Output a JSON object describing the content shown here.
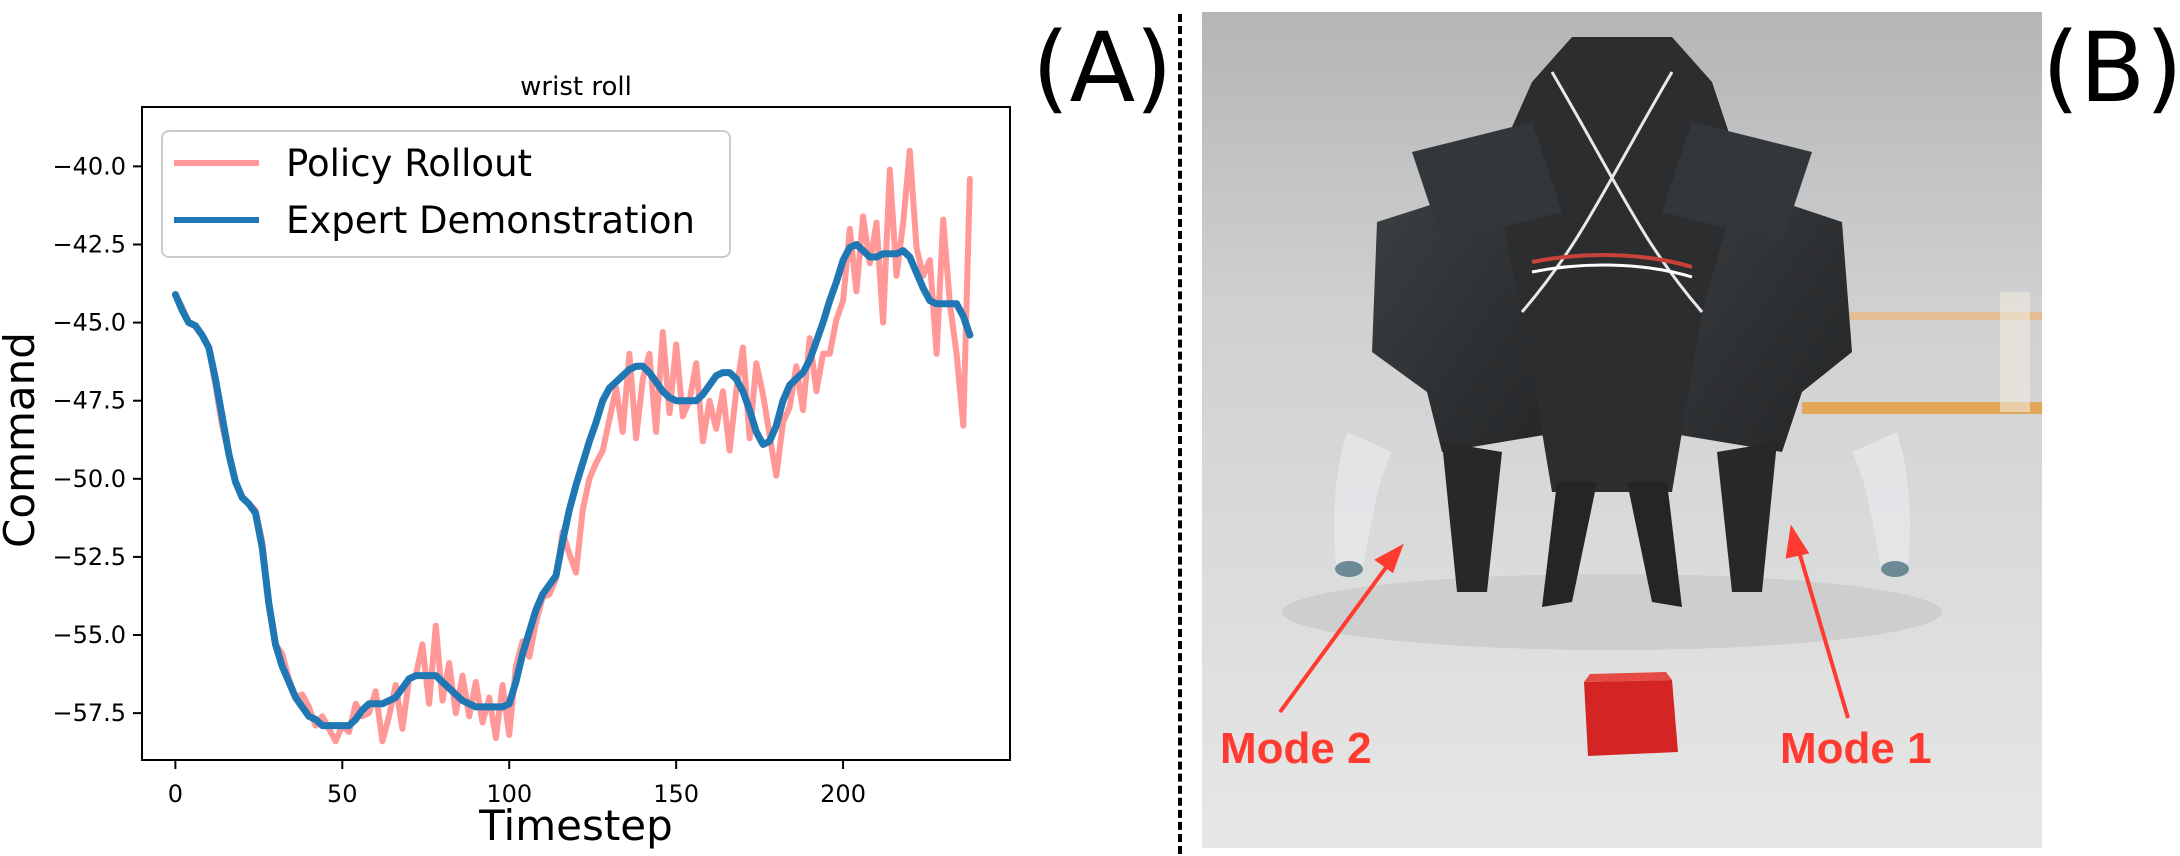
{
  "panels": {
    "a_label": "(A)",
    "b_label": "(B)"
  },
  "chart_data": {
    "type": "line",
    "title": "wrist roll",
    "xlabel": "Timestep",
    "ylabel": "Command",
    "xlim": [
      -10,
      250
    ],
    "ylim": [
      -59.0,
      -38.1
    ],
    "xticks": [
      0,
      50,
      100,
      150,
      200
    ],
    "yticks": [
      -40.0,
      -42.5,
      -45.0,
      -47.5,
      -50.0,
      -52.5,
      -55.0,
      -57.5
    ],
    "grid": false,
    "legend_position": "top-left",
    "series": [
      {
        "name": "Policy Rollout",
        "color": "#ff9896",
        "x": [
          0,
          2,
          4,
          6,
          8,
          10,
          12,
          14,
          16,
          18,
          20,
          22,
          24,
          26,
          28,
          30,
          32,
          34,
          36,
          38,
          40,
          42,
          44,
          46,
          48,
          50,
          52,
          54,
          56,
          58,
          60,
          62,
          64,
          66,
          68,
          70,
          72,
          74,
          76,
          78,
          80,
          82,
          84,
          86,
          88,
          90,
          92,
          94,
          96,
          98,
          100,
          102,
          104,
          106,
          108,
          110,
          112,
          114,
          116,
          118,
          120,
          122,
          124,
          126,
          128,
          130,
          132,
          134,
          136,
          138,
          140,
          142,
          144,
          146,
          148,
          150,
          152,
          154,
          156,
          158,
          160,
          162,
          164,
          166,
          168,
          170,
          172,
          174,
          176,
          178,
          180,
          182,
          184,
          186,
          188,
          190,
          192,
          194,
          196,
          198,
          200,
          202,
          204,
          206,
          208,
          210,
          212,
          214,
          216,
          218,
          220,
          222,
          224,
          226,
          228,
          230,
          232,
          234,
          236,
          238
        ],
        "values": [
          -44.1,
          -44.5,
          -45.0,
          -45.1,
          -45.4,
          -45.8,
          -47.0,
          -48.3,
          -49.2,
          -50.1,
          -50.6,
          -50.8,
          -51.0,
          -52.0,
          -54.0,
          -55.3,
          -55.6,
          -56.4,
          -57.0,
          -56.9,
          -57.3,
          -57.9,
          -57.6,
          -58.0,
          -58.4,
          -57.9,
          -58.1,
          -57.2,
          -57.6,
          -57.5,
          -56.8,
          -58.4,
          -57.6,
          -56.6,
          -58.0,
          -56.4,
          -56.3,
          -55.3,
          -57.2,
          -54.7,
          -57.1,
          -55.9,
          -57.5,
          -56.3,
          -57.6,
          -56.5,
          -57.8,
          -57.0,
          -58.3,
          -56.6,
          -58.2,
          -56.0,
          -55.2,
          -55.7,
          -54.6,
          -53.8,
          -53.7,
          -53.2,
          -51.7,
          -52.4,
          -53.0,
          -51.0,
          -50.0,
          -49.5,
          -49.1,
          -48.1,
          -47.1,
          -48.5,
          -46.0,
          -48.7,
          -46.8,
          -46.0,
          -48.5,
          -45.3,
          -47.9,
          -45.7,
          -48.0,
          -47.5,
          -46.3,
          -48.8,
          -47.5,
          -48.4,
          -47.2,
          -49.1,
          -47.2,
          -45.8,
          -48.7,
          -46.3,
          -47.3,
          -48.6,
          -49.9,
          -48.2,
          -47.7,
          -46.4,
          -47.8,
          -45.5,
          -47.2,
          -46.0,
          -46.0,
          -44.9,
          -44.3,
          -42.0,
          -44.0,
          -41.6,
          -43.1,
          -41.8,
          -45.0,
          -40.1,
          -43.5,
          -41.8,
          -39.5,
          -42.6,
          -43.5,
          -43.0,
          -46.0,
          -41.7,
          -44.4,
          -46.0,
          -48.3,
          -40.4
        ]
      },
      {
        "name": "Expert Demonstration",
        "color": "#1f77b4",
        "x": [
          0,
          2,
          4,
          6,
          8,
          10,
          12,
          14,
          16,
          18,
          20,
          22,
          24,
          26,
          28,
          30,
          32,
          34,
          36,
          38,
          40,
          42,
          44,
          46,
          48,
          50,
          52,
          54,
          56,
          58,
          60,
          62,
          64,
          66,
          68,
          70,
          72,
          74,
          76,
          78,
          80,
          82,
          84,
          86,
          88,
          90,
          92,
          94,
          96,
          98,
          100,
          102,
          104,
          106,
          108,
          110,
          112,
          114,
          116,
          118,
          120,
          122,
          124,
          126,
          128,
          130,
          132,
          134,
          136,
          138,
          140,
          142,
          144,
          146,
          148,
          150,
          152,
          154,
          156,
          158,
          160,
          162,
          164,
          166,
          168,
          170,
          172,
          174,
          176,
          178,
          180,
          182,
          184,
          186,
          188,
          190,
          192,
          194,
          196,
          198,
          200,
          202,
          204,
          206,
          208,
          210,
          212,
          214,
          216,
          218,
          220,
          222,
          224,
          226,
          228,
          230,
          232,
          234,
          236,
          238
        ],
        "values": [
          -44.1,
          -44.6,
          -45.0,
          -45.1,
          -45.4,
          -45.8,
          -46.8,
          -48.0,
          -49.2,
          -50.1,
          -50.6,
          -50.8,
          -51.1,
          -52.2,
          -54.0,
          -55.3,
          -56.0,
          -56.5,
          -57.0,
          -57.3,
          -57.6,
          -57.7,
          -57.9,
          -57.9,
          -57.9,
          -57.9,
          -57.9,
          -57.7,
          -57.4,
          -57.2,
          -57.2,
          -57.2,
          -57.1,
          -57.0,
          -56.7,
          -56.4,
          -56.3,
          -56.3,
          -56.3,
          -56.3,
          -56.5,
          -56.7,
          -56.9,
          -57.1,
          -57.2,
          -57.3,
          -57.3,
          -57.3,
          -57.3,
          -57.3,
          -57.2,
          -56.5,
          -55.6,
          -54.9,
          -54.2,
          -53.7,
          -53.4,
          -53.1,
          -52.0,
          -51.0,
          -50.2,
          -49.5,
          -48.8,
          -48.2,
          -47.5,
          -47.1,
          -46.9,
          -46.7,
          -46.5,
          -46.4,
          -46.4,
          -46.6,
          -46.9,
          -47.2,
          -47.4,
          -47.5,
          -47.5,
          -47.5,
          -47.5,
          -47.3,
          -47.0,
          -46.7,
          -46.6,
          -46.6,
          -46.8,
          -47.2,
          -47.8,
          -48.5,
          -48.9,
          -48.8,
          -48.3,
          -47.5,
          -47.0,
          -46.8,
          -46.6,
          -46.2,
          -45.6,
          -45.0,
          -44.3,
          -43.7,
          -43.0,
          -42.6,
          -42.5,
          -42.7,
          -42.9,
          -42.9,
          -42.8,
          -42.8,
          -42.8,
          -42.7,
          -42.9,
          -43.4,
          -43.9,
          -44.3,
          -44.4,
          -44.4,
          -44.4,
          -44.4,
          -44.8,
          -45.4
        ]
      }
    ]
  },
  "photo": {
    "mode_2_label": "Mode 2",
    "mode_1_label": "Mode 1",
    "arrow_color": "#ff3b30",
    "block_color": "#d42424"
  }
}
